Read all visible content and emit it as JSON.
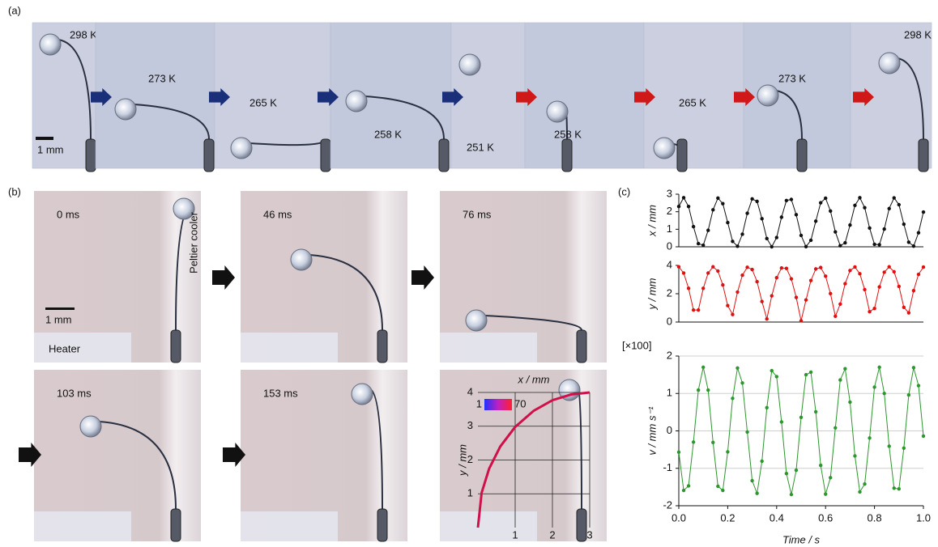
{
  "panel_a": {
    "label": "(a)",
    "scale_bar": "1 mm",
    "temperatures": [
      "298 K",
      "273 K",
      "265 K",
      "258 K",
      "251 K",
      "258 K",
      "265 K",
      "273 K",
      "298 K"
    ]
  },
  "panel_b": {
    "label": "(b)",
    "times": [
      "0 ms",
      "46 ms",
      "76 ms",
      "103 ms",
      "153 ms"
    ],
    "scale_bar": "1 mm",
    "cooler": "Peltier cooler",
    "heater": "Heater",
    "colorbar_range": [
      1,
      70
    ]
  },
  "panel_c": {
    "label": "(c)"
  },
  "chart_data": [
    {
      "type": "line",
      "y_label": "x / mm",
      "color": "#111111",
      "xlim": [
        0,
        1
      ],
      "ylim": [
        0,
        3
      ],
      "yticks": [
        0,
        1,
        2,
        3
      ],
      "x": [
        0,
        0.02,
        0.04,
        0.06,
        0.08,
        0.1,
        0.12,
        0.14,
        0.16,
        0.18,
        0.2,
        0.22,
        0.24,
        0.26,
        0.28,
        0.3,
        0.32,
        0.34,
        0.36,
        0.38,
        0.4,
        0.42,
        0.44,
        0.46,
        0.48,
        0.5,
        0.52,
        0.54,
        0.56,
        0.58,
        0.6,
        0.62,
        0.64,
        0.66,
        0.68,
        0.7,
        0.72,
        0.74,
        0.76,
        0.78,
        0.8,
        0.82,
        0.84,
        0.86,
        0.88,
        0.9,
        0.92,
        0.94,
        0.96,
        0.98,
        1
      ],
      "values": [
        2.3,
        2.8,
        2.3,
        1.15,
        0.18,
        0.09,
        0.94,
        2.11,
        2.78,
        2.46,
        1.38,
        0.31,
        0.03,
        0.72,
        1.91,
        2.73,
        2.59,
        1.6,
        0.47,
        0,
        0.53,
        1.69,
        2.64,
        2.7,
        1.83,
        0.65,
        0.01,
        0.37,
        1.46,
        2.51,
        2.77,
        2.04,
        0.85,
        0.06,
        0.23,
        1.24,
        2.36,
        2.8,
        2.23,
        1.07,
        0.14,
        0.12,
        1.01,
        2.18,
        2.79,
        2.4,
        1.29,
        0.26,
        0.04,
        0.8,
        1.98
      ]
    },
    {
      "type": "line",
      "y_label": "y / mm",
      "color": "#e01010",
      "xlim": [
        0,
        1
      ],
      "ylim": [
        0,
        4
      ],
      "yticks": [
        0,
        2,
        4
      ],
      "x": [
        0,
        0.02,
        0.04,
        0.06,
        0.08,
        0.1,
        0.12,
        0.14,
        0.16,
        0.18,
        0.2,
        0.22,
        0.24,
        0.26,
        0.28,
        0.3,
        0.32,
        0.34,
        0.36,
        0.38,
        0.4,
        0.42,
        0.44,
        0.46,
        0.48,
        0.5,
        0.52,
        0.54,
        0.56,
        0.58,
        0.6,
        0.62,
        0.64,
        0.66,
        0.68,
        0.7,
        0.72,
        0.74,
        0.76,
        0.78,
        0.8,
        0.82,
        0.84,
        0.86,
        0.88,
        0.9,
        0.92,
        0.94,
        0.96,
        0.98,
        1
      ],
      "values": [
        3.9,
        3.46,
        2.38,
        0.85,
        0.85,
        2.38,
        3.46,
        3.9,
        3.6,
        2.62,
        1.16,
        0.53,
        2.12,
        3.31,
        3.87,
        3.71,
        2.85,
        1.45,
        0.22,
        1.85,
        3.13,
        3.82,
        3.79,
        3.05,
        1.74,
        0.09,
        1.56,
        2.93,
        3.75,
        3.85,
        3.24,
        2.01,
        0.41,
        1.27,
        2.71,
        3.64,
        3.89,
        3.41,
        2.29,
        0.73,
        0.96,
        2.48,
        3.52,
        3.9,
        3.55,
        2.52,
        1.04,
        0.65,
        2.22,
        3.37,
        3.88
      ]
    },
    {
      "type": "line",
      "y_label": "v / mm s⁻¹",
      "multiplier": "[×100]",
      "x_label": "Time / s",
      "color": "#2e962e",
      "grid": true,
      "xlim": [
        0,
        1
      ],
      "ylim": [
        -2,
        2
      ],
      "yticks": [
        -2,
        -1,
        0,
        1,
        2
      ],
      "xticks": [
        {
          "value": 0,
          "label": "0.0"
        },
        0.2,
        0.4,
        0.6,
        0.8,
        {
          "value": 1,
          "label": "1.0"
        }
      ],
      "x": [
        0,
        0.02,
        0.04,
        0.06,
        0.08,
        0.1,
        0.12,
        0.14,
        0.16,
        0.18,
        0.2,
        0.22,
        0.24,
        0.26,
        0.28,
        0.3,
        0.32,
        0.34,
        0.36,
        0.38,
        0.4,
        0.42,
        0.44,
        0.46,
        0.48,
        0.5,
        0.52,
        0.54,
        0.56,
        0.58,
        0.6,
        0.62,
        0.64,
        0.66,
        0.68,
        0.7,
        0.72,
        0.74,
        0.76,
        0.78,
        0.8,
        0.82,
        0.84,
        0.86,
        0.88,
        0.9,
        0.92,
        0.94,
        0.96,
        0.98,
        1
      ],
      "values": [
        -0.57,
        -1.59,
        -1.47,
        -0.3,
        1.09,
        1.7,
        1.09,
        -0.31,
        -1.48,
        -1.59,
        -0.56,
        0.87,
        1.68,
        1.28,
        -0.03,
        -1.33,
        -1.67,
        -0.81,
        0.62,
        1.61,
        1.45,
        0.24,
        -1.14,
        -1.7,
        -1.05,
        0.36,
        1.5,
        1.57,
        0.51,
        -0.92,
        -1.69,
        -1.25,
        0.08,
        1.36,
        1.66,
        0.77,
        -0.67,
        -1.63,
        -1.42,
        -0.19,
        1.17,
        1.7,
        1,
        -0.41,
        -1.53,
        -1.55,
        -0.46,
        0.96,
        1.69,
        1.21,
        -0.14
      ]
    },
    {
      "type": "line",
      "x_label": "x / mm",
      "y_label": "y / mm",
      "color": "#d0104a",
      "grid": true,
      "xlim": [
        0,
        3
      ],
      "ylim": [
        0,
        4
      ],
      "xticks": [
        1,
        2,
        3
      ],
      "yticks": [
        1,
        2,
        3,
        4
      ],
      "x": [
        0,
        0.1,
        0.3,
        0.6,
        1,
        1.5,
        2,
        2.5,
        3
      ],
      "values": [
        0,
        1.03,
        1.74,
        2.4,
        2.98,
        3.46,
        3.77,
        3.94,
        4
      ]
    }
  ]
}
